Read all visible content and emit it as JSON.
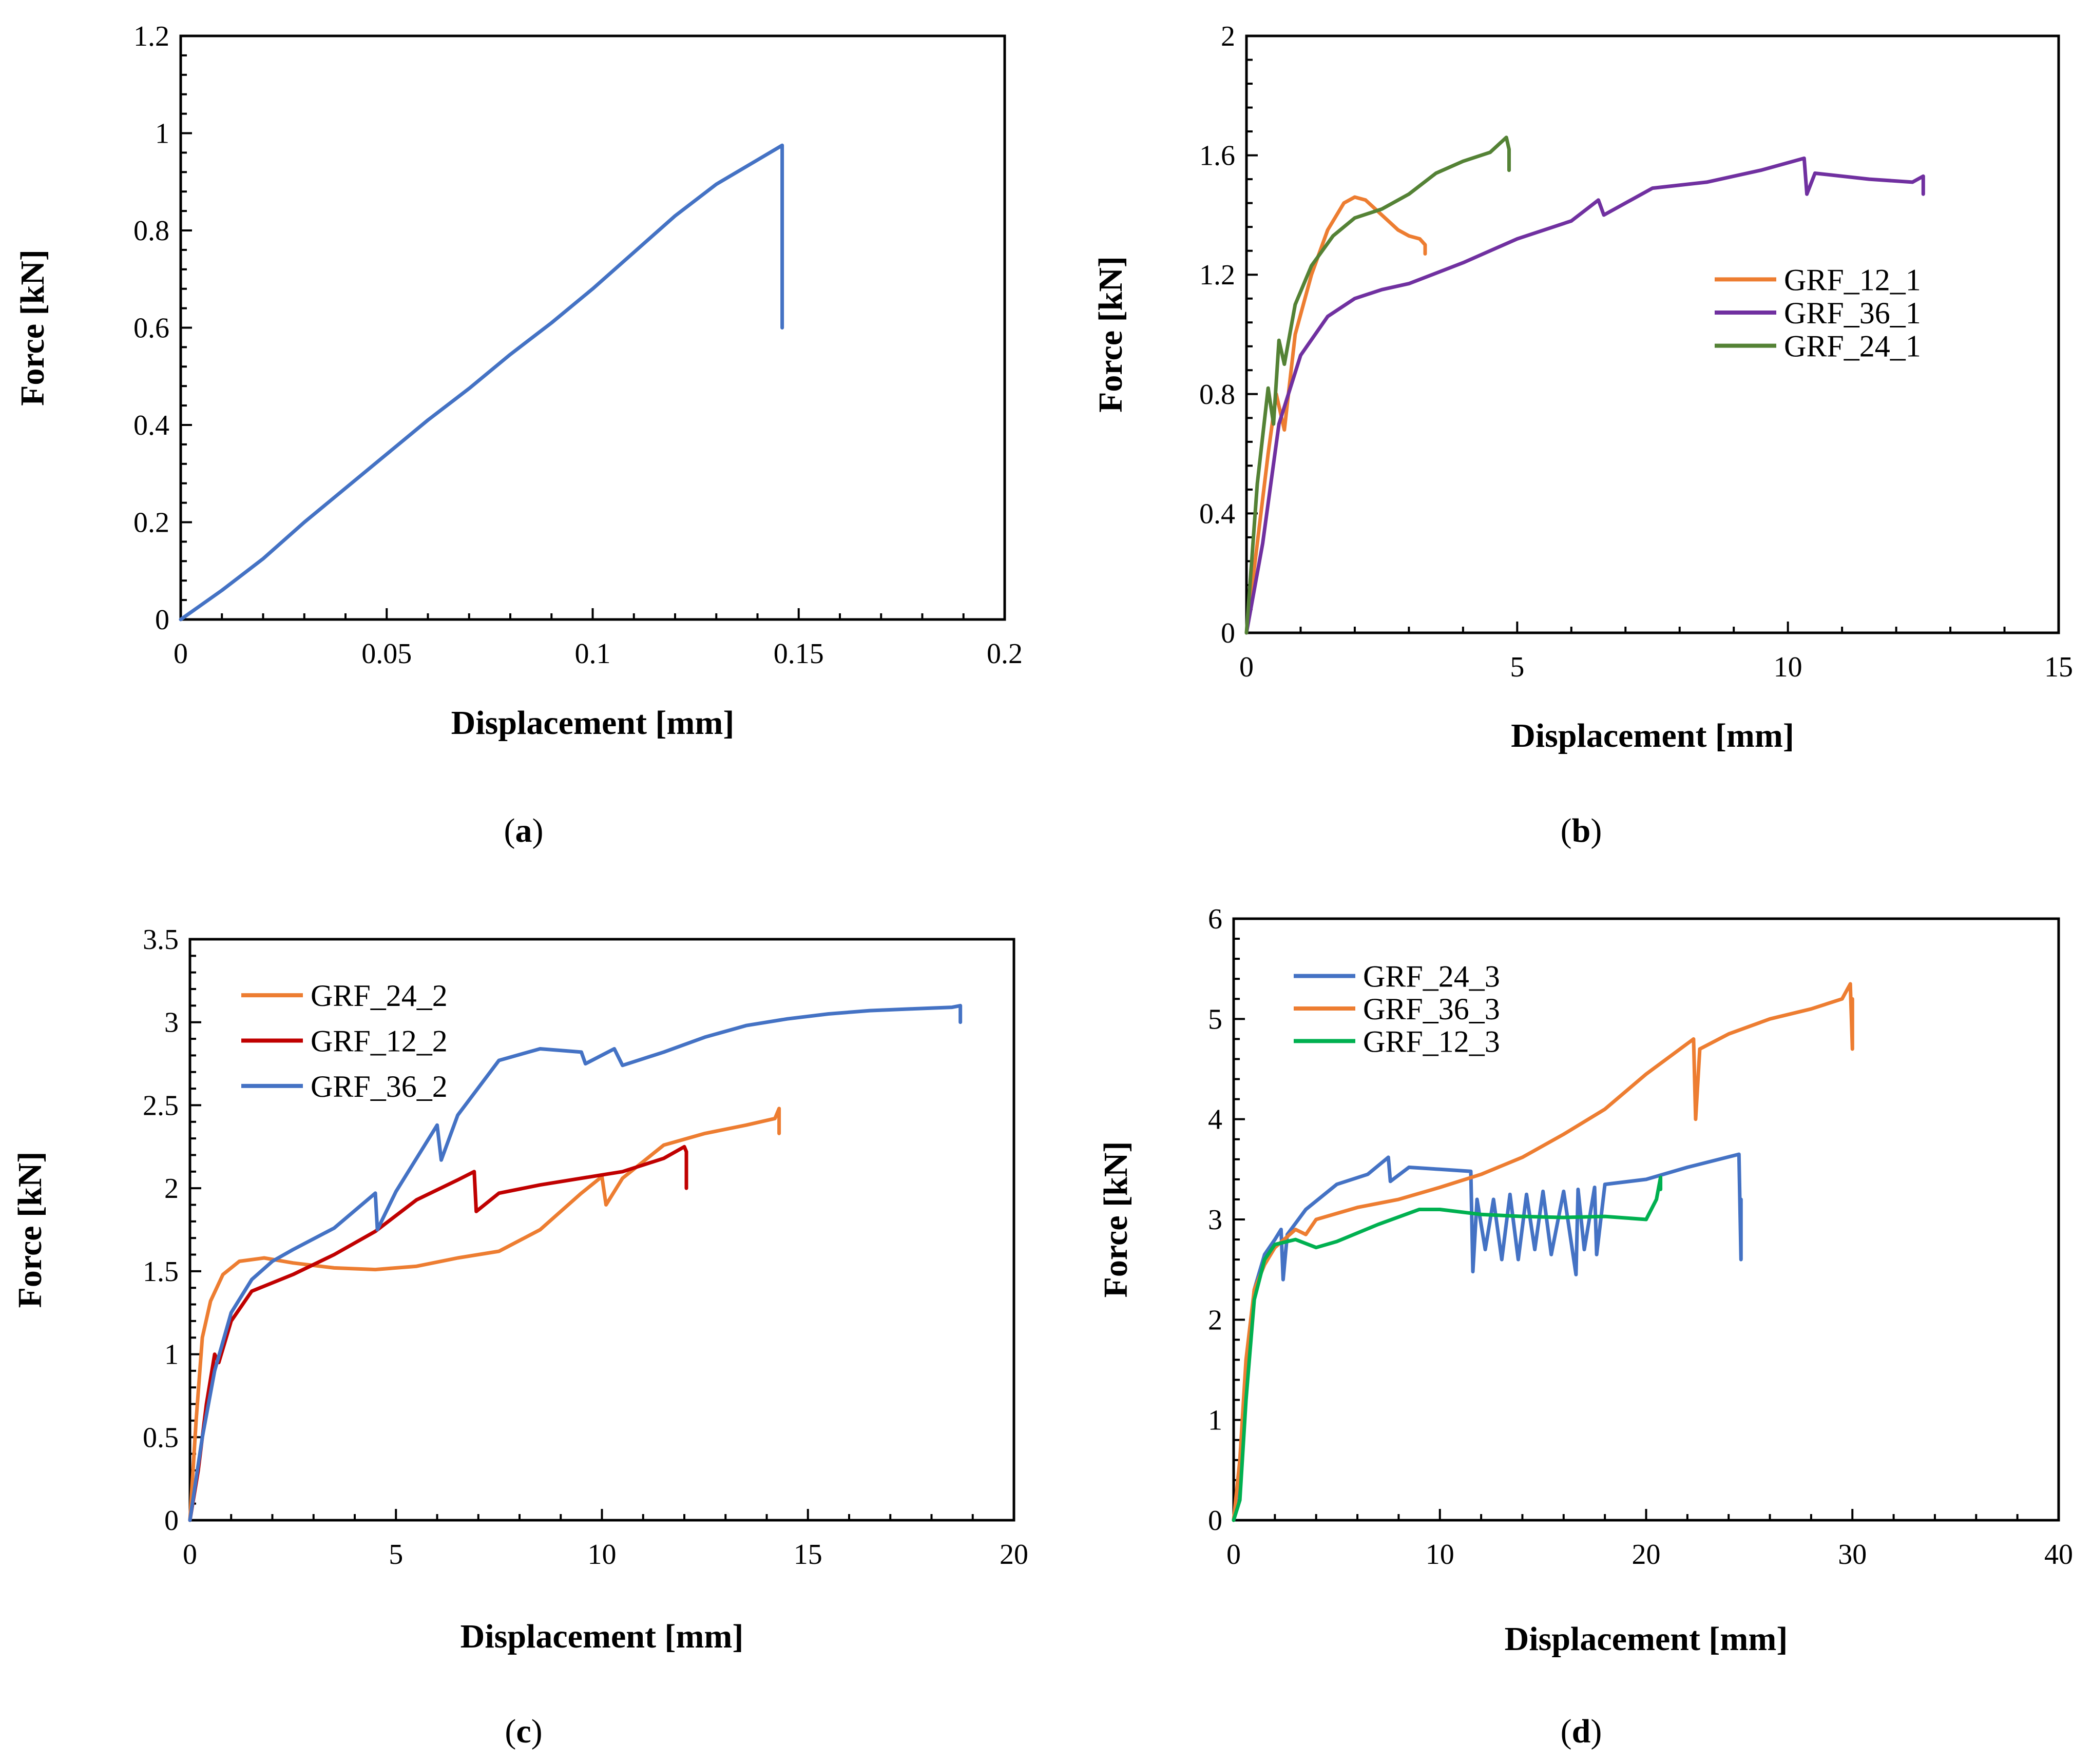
{
  "chart_data": [
    {
      "id": "a",
      "type": "line",
      "caption": "a",
      "xlabel": "Displacement [mm]",
      "ylabel": "Force [kN]",
      "xlim": [
        0,
        0.2
      ],
      "ylim": [
        0,
        1.2
      ],
      "xticks": [
        0,
        0.05,
        0.1,
        0.15,
        0.2
      ],
      "yticks": [
        0,
        0.2,
        0.4,
        0.6,
        0.8,
        1,
        1.2
      ],
      "xtick_labels": [
        "0",
        "0.05",
        "0.1",
        "0.15",
        "0.2"
      ],
      "ytick_labels": [
        "0",
        "0.2",
        "0.4",
        "0.6",
        "0.8",
        "1",
        "1.2"
      ],
      "series": [
        {
          "name": "",
          "color": "#4472c4",
          "x": [
            0,
            0.01,
            0.02,
            0.03,
            0.04,
            0.05,
            0.06,
            0.07,
            0.08,
            0.09,
            0.1,
            0.11,
            0.12,
            0.13,
            0.14,
            0.146,
            0.146,
            0.146
          ],
          "y": [
            0,
            0.06,
            0.125,
            0.2,
            0.27,
            0.34,
            0.41,
            0.475,
            0.545,
            0.61,
            0.68,
            0.755,
            0.83,
            0.895,
            0.945,
            0.975,
            0.75,
            0.6
          ]
        }
      ]
    },
    {
      "id": "b",
      "type": "line",
      "caption": "b",
      "xlabel": "Displacement [mm]",
      "ylabel": "Force [kN]",
      "xlim": [
        0,
        15
      ],
      "ylim": [
        0,
        2
      ],
      "xticks": [
        0,
        5,
        10,
        15
      ],
      "yticks": [
        0,
        0.4,
        0.8,
        1.2,
        1.6,
        2
      ],
      "xtick_labels": [
        "0",
        "5",
        "10",
        "15"
      ],
      "ytick_labels": [
        "0",
        "0.4",
        "0.8",
        "1.2",
        "1.6",
        "2"
      ],
      "legend_position": "right",
      "series": [
        {
          "name": "GRF_12_1",
          "color": "#ed7d31",
          "x": [
            0,
            0.2,
            0.4,
            0.55,
            0.7,
            0.9,
            1.2,
            1.5,
            1.8,
            2.0,
            2.2,
            2.5,
            2.8,
            3.0,
            3.2,
            3.3,
            3.3
          ],
          "y": [
            0,
            0.3,
            0.6,
            0.8,
            0.68,
            1.0,
            1.2,
            1.35,
            1.44,
            1.46,
            1.45,
            1.4,
            1.35,
            1.33,
            1.32,
            1.3,
            1.27
          ]
        },
        {
          "name": "GRF_36_1",
          "color": "#7030a0",
          "x": [
            0,
            0.3,
            0.6,
            1.0,
            1.5,
            2.0,
            2.5,
            3.0,
            4.0,
            5.0,
            6.0,
            6.5,
            6.6,
            7.5,
            8.5,
            9.5,
            10.3,
            10.35,
            10.5,
            11.5,
            12.3,
            12.5,
            12.5
          ],
          "y": [
            0,
            0.3,
            0.7,
            0.93,
            1.06,
            1.12,
            1.15,
            1.17,
            1.24,
            1.32,
            1.38,
            1.45,
            1.4,
            1.49,
            1.51,
            1.55,
            1.59,
            1.47,
            1.54,
            1.52,
            1.51,
            1.53,
            1.47
          ]
        },
        {
          "name": "GRF_24_1",
          "color": "#548235",
          "x": [
            0,
            0.2,
            0.4,
            0.5,
            0.6,
            0.7,
            0.9,
            1.2,
            1.6,
            2.0,
            2.5,
            3.0,
            3.5,
            4.0,
            4.5,
            4.8,
            4.85,
            4.85
          ],
          "y": [
            0,
            0.5,
            0.82,
            0.7,
            0.98,
            0.9,
            1.1,
            1.23,
            1.33,
            1.39,
            1.42,
            1.47,
            1.54,
            1.58,
            1.61,
            1.66,
            1.62,
            1.55
          ]
        }
      ]
    },
    {
      "id": "c",
      "type": "line",
      "caption": "c",
      "xlabel": "Displacement [mm]",
      "ylabel": "Force [kN]",
      "xlim": [
        0,
        20
      ],
      "ylim": [
        0,
        3.5
      ],
      "xticks": [
        0,
        5,
        10,
        15,
        20
      ],
      "yticks": [
        0,
        0.5,
        1,
        1.5,
        2,
        2.5,
        3,
        3.5
      ],
      "xtick_labels": [
        "0",
        "5",
        "10",
        "15",
        "20"
      ],
      "ytick_labels": [
        "0",
        "0.5",
        "1",
        "1.5",
        "2",
        "2.5",
        "3",
        "3.5"
      ],
      "legend_position": "top-left",
      "series": [
        {
          "name": "GRF_24_2",
          "color": "#ed7d31",
          "x": [
            0,
            0.15,
            0.3,
            0.5,
            0.8,
            1.2,
            1.8,
            2.5,
            3.5,
            4.5,
            5.5,
            6.5,
            7.5,
            8.5,
            9.5,
            10.0,
            10.1,
            10.5,
            11.5,
            12.5,
            13.5,
            14.2,
            14.3,
            14.3
          ],
          "y": [
            0,
            0.6,
            1.1,
            1.32,
            1.48,
            1.56,
            1.58,
            1.55,
            1.52,
            1.51,
            1.53,
            1.58,
            1.62,
            1.75,
            1.97,
            2.07,
            1.9,
            2.06,
            2.26,
            2.33,
            2.38,
            2.42,
            2.48,
            2.33
          ]
        },
        {
          "name": "GRF_12_2",
          "color": "#c00000",
          "x": [
            0,
            0.2,
            0.4,
            0.6,
            0.7,
            1.0,
            1.5,
            2.5,
            3.5,
            4.5,
            5.5,
            6.5,
            6.9,
            6.95,
            7.5,
            8.5,
            9.5,
            10.5,
            11.5,
            12.0,
            12.05,
            12.05
          ],
          "y": [
            0,
            0.3,
            0.7,
            1.0,
            0.95,
            1.2,
            1.38,
            1.48,
            1.6,
            1.74,
            1.93,
            2.05,
            2.1,
            1.86,
            1.97,
            2.02,
            2.06,
            2.1,
            2.18,
            2.25,
            2.22,
            2.0
          ]
        },
        {
          "name": "GRF_36_2",
          "color": "#4472c4",
          "x": [
            0,
            0.3,
            0.6,
            1.0,
            1.5,
            2.0,
            2.5,
            3.5,
            4.5,
            4.55,
            5.0,
            6.0,
            6.1,
            6.5,
            7.5,
            8.5,
            9.5,
            9.6,
            10.3,
            10.5,
            11.5,
            12.5,
            13.5,
            14.5,
            15.5,
            16.5,
            17.5,
            18.5,
            18.7,
            18.7
          ],
          "y": [
            0,
            0.5,
            0.9,
            1.25,
            1.45,
            1.56,
            1.63,
            1.76,
            1.97,
            1.75,
            1.98,
            2.38,
            2.17,
            2.44,
            2.77,
            2.84,
            2.82,
            2.75,
            2.84,
            2.74,
            2.82,
            2.91,
            2.98,
            3.02,
            3.05,
            3.07,
            3.08,
            3.09,
            3.1,
            3.0
          ]
        }
      ]
    },
    {
      "id": "d",
      "type": "line",
      "caption": "d",
      "xlabel": "Displacement [mm]",
      "ylabel": "Force [kN]",
      "xlim": [
        0,
        40
      ],
      "ylim": [
        0,
        6
      ],
      "xticks": [
        0,
        10,
        20,
        30,
        40
      ],
      "yticks": [
        0,
        1,
        2,
        3,
        4,
        5,
        6
      ],
      "xtick_labels": [
        "0",
        "10",
        "20",
        "30",
        "40"
      ],
      "ytick_labels": [
        "0",
        "1",
        "2",
        "3",
        "4",
        "5",
        "6"
      ],
      "legend_position": "top-left",
      "series": [
        {
          "name": "GRF_24_3",
          "color": "#4472c4",
          "x": [
            0,
            0.3,
            0.6,
            1.0,
            1.5,
            2.0,
            2.3,
            2.4,
            2.6,
            3.5,
            5.0,
            6.5,
            7.5,
            7.6,
            8.5,
            10.0,
            11.5,
            11.6,
            11.8,
            12.2,
            12.6,
            13.0,
            13.4,
            13.8,
            14.2,
            14.6,
            15.0,
            15.4,
            16.0,
            16.6,
            16.7,
            17.0,
            17.5,
            17.6,
            18.0,
            20.0,
            22.0,
            24.5,
            24.6,
            24.6
          ],
          "y": [
            0,
            0.5,
            1.5,
            2.3,
            2.65,
            2.8,
            2.9,
            2.4,
            2.85,
            3.1,
            3.35,
            3.45,
            3.62,
            3.38,
            3.52,
            3.5,
            3.48,
            2.48,
            3.2,
            2.7,
            3.2,
            2.6,
            3.25,
            2.6,
            3.25,
            2.7,
            3.28,
            2.65,
            3.28,
            2.45,
            3.3,
            2.7,
            3.32,
            2.65,
            3.35,
            3.4,
            3.52,
            3.65,
            2.6,
            3.2
          ]
        },
        {
          "name": "GRF_36_3",
          "color": "#ed7d31",
          "x": [
            0,
            0.3,
            0.6,
            1.0,
            1.5,
            2.0,
            3.0,
            3.5,
            4.0,
            6.0,
            8.0,
            10.0,
            12.0,
            14.0,
            16.0,
            18.0,
            20.0,
            22.3,
            22.4,
            22.6,
            24.0,
            26.0,
            28.0,
            29.5,
            29.9,
            30.0,
            30.0
          ],
          "y": [
            0,
            0.6,
            1.6,
            2.3,
            2.55,
            2.72,
            2.9,
            2.85,
            3.0,
            3.12,
            3.2,
            3.32,
            3.45,
            3.62,
            3.85,
            4.1,
            4.45,
            4.8,
            4.0,
            4.7,
            4.85,
            5.0,
            5.1,
            5.2,
            5.35,
            4.7,
            5.2
          ]
        },
        {
          "name": "GRF_12_3",
          "color": "#00b050",
          "x": [
            0,
            0.3,
            0.6,
            1.0,
            1.5,
            2.0,
            3.0,
            4.0,
            5.0,
            7.0,
            9.0,
            10.0,
            12.0,
            14.0,
            16.0,
            18.0,
            20.0,
            20.5,
            20.7,
            20.7
          ],
          "y": [
            0,
            0.2,
            1.2,
            2.2,
            2.6,
            2.75,
            2.8,
            2.72,
            2.78,
            2.95,
            3.1,
            3.1,
            3.05,
            3.03,
            3.02,
            3.03,
            3.0,
            3.2,
            3.42,
            3.3
          ]
        }
      ]
    }
  ]
}
